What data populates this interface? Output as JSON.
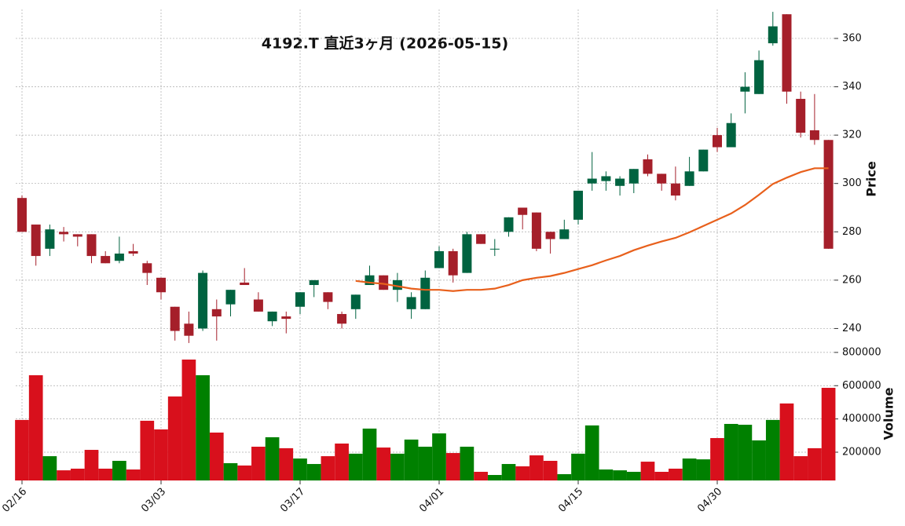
{
  "chart_data": {
    "type": "candlestick",
    "title": "4192.T  直近3ヶ月  (2026-05-15)",
    "categories": [
      "02/16",
      null,
      null,
      null,
      null,
      null,
      null,
      null,
      null,
      null,
      "03/03",
      null,
      null,
      null,
      null,
      null,
      null,
      null,
      null,
      null,
      "03/17",
      null,
      null,
      null,
      null,
      null,
      null,
      null,
      null,
      null,
      "04/01",
      null,
      null,
      null,
      null,
      null,
      null,
      null,
      null,
      null,
      "04/15",
      null,
      null,
      null,
      null,
      null,
      null,
      null,
      null,
      null,
      "04/30",
      null,
      null,
      null,
      null,
      null,
      null,
      null,
      null
    ],
    "open": [
      294,
      283,
      273,
      280,
      279,
      279,
      270,
      268,
      272,
      267,
      261,
      249,
      242,
      240,
      248,
      250,
      259,
      252,
      243,
      245,
      249,
      258,
      255,
      246,
      248,
      258,
      262,
      256,
      248,
      248,
      265,
      272,
      263,
      279,
      273,
      280,
      290,
      288,
      280,
      277,
      285,
      300,
      301,
      299,
      300,
      310,
      304,
      300,
      299,
      305,
      320,
      315,
      338,
      337,
      358,
      370,
      335,
      322,
      318
    ],
    "high": [
      295,
      283,
      283,
      282,
      279,
      279,
      272,
      278,
      275,
      268,
      261,
      249,
      247,
      264,
      252,
      256,
      265,
      255,
      247,
      247,
      255,
      260,
      255,
      247,
      254,
      266,
      262,
      263,
      255,
      264,
      274,
      273,
      280,
      279,
      277,
      286,
      290,
      288,
      280,
      285,
      297,
      313,
      305,
      303,
      306,
      312,
      304,
      307,
      311,
      314,
      323,
      329,
      346,
      355,
      371,
      370,
      338,
      337,
      318
    ],
    "low": [
      280,
      266,
      270,
      276,
      274,
      267,
      267,
      267,
      270,
      258,
      252,
      235,
      234,
      239,
      235,
      245,
      258,
      247,
      241,
      238,
      246,
      253,
      248,
      240,
      244,
      258,
      256,
      251,
      244,
      248,
      265,
      259,
      263,
      275,
      270,
      278,
      281,
      272,
      271,
      277,
      283,
      297,
      297,
      295,
      296,
      303,
      297,
      293,
      299,
      305,
      313,
      315,
      329,
      337,
      357,
      333,
      319,
      316,
      273
    ],
    "close": [
      280,
      270,
      281,
      279,
      278,
      270,
      267,
      271,
      271,
      263,
      255,
      239,
      237,
      263,
      245,
      256,
      258,
      247,
      247,
      244,
      255,
      260,
      251,
      242,
      254,
      262,
      256,
      260,
      253,
      261,
      272,
      262,
      279,
      275,
      273,
      286,
      287,
      273,
      277,
      281,
      297,
      302,
      303,
      302,
      306,
      304,
      300,
      295,
      305,
      314,
      315,
      325,
      340,
      351,
      365,
      338,
      321,
      318,
      273
    ],
    "ma": {
      "color": "#e8601c",
      "values": [
        null,
        null,
        null,
        null,
        null,
        null,
        null,
        null,
        null,
        null,
        null,
        null,
        null,
        null,
        null,
        null,
        null,
        null,
        null,
        null,
        null,
        null,
        null,
        null,
        259.7,
        259,
        258.5,
        257.5,
        256.5,
        256,
        256,
        255.5,
        256,
        256,
        256.5,
        258,
        260,
        261,
        261.7,
        263,
        264.6,
        266.2,
        268.2,
        270,
        272.4,
        274.3,
        276,
        277.5,
        279.8,
        282.4,
        285,
        287.6,
        291.1,
        295.3,
        299.8,
        302.4,
        304.7,
        306.3,
        306.3
      ]
    },
    "volume": [
      394000,
      663000,
      176000,
      91000,
      101000,
      214000,
      101000,
      148000,
      96000,
      389000,
      337000,
      535000,
      757000,
      663000,
      318000,
      134000,
      120000,
      233000,
      290000,
      224000,
      162000,
      129000,
      176000,
      252000,
      191000,
      342000,
      228000,
      191000,
      276000,
      233000,
      313000,
      195000,
      233000,
      82000,
      63000,
      129000,
      115000,
      181000,
      148000,
      68000,
      191000,
      361000,
      96000,
      91000,
      82000,
      143000,
      82000,
      101000,
      162000,
      157000,
      285000,
      370000,
      365000,
      271000,
      394000,
      493000,
      176000,
      224000,
      587000
    ],
    "up_color": "#006340",
    "down_color": "#a51f2a",
    "volume_up_color": "#008000",
    "volume_down_color": "#d8101c",
    "ylabel": "Price",
    "ylim": [
      233,
      372
    ],
    "yticks": [
      240,
      260,
      280,
      300,
      320,
      340,
      360
    ],
    "volume_ylabel": "Volume",
    "volume_ylim": [
      30000,
      842000
    ],
    "volume_yticks": [
      200000,
      400000,
      600000,
      800000
    ],
    "grid": true
  }
}
